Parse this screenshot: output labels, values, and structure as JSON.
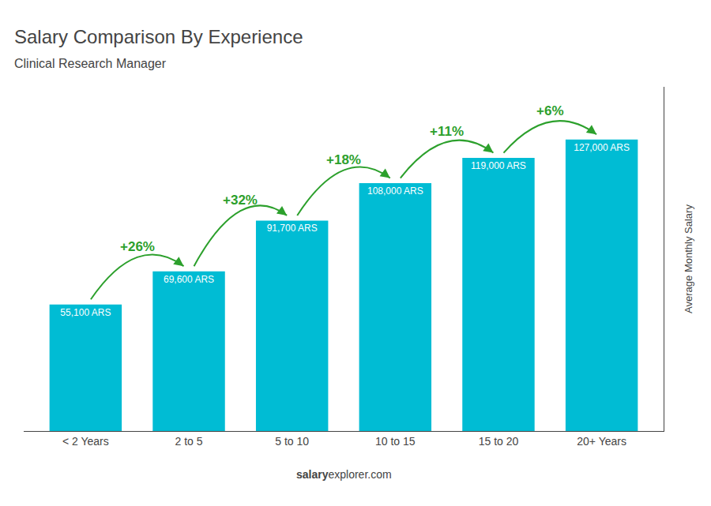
{
  "chart_data": {
    "type": "bar",
    "title": "Salary Comparison By Experience",
    "subtitle": "Clinical Research Manager",
    "ylabel": "Average Monthly Salary",
    "categories": [
      "< 2 Years",
      "2 to 5",
      "5 to 10",
      "10 to 15",
      "15 to 20",
      "20+ Years"
    ],
    "values": [
      55100,
      69600,
      91700,
      108000,
      119000,
      127000
    ],
    "value_labels": [
      "55,100 ARS",
      "69,600 ARS",
      "91,700 ARS",
      "108,000 ARS",
      "119,000 ARS",
      "127,000 ARS"
    ],
    "data_labels": true,
    "change_labels": [
      null,
      "+26%",
      "+32%",
      "+18%",
      "+11%",
      "+6%"
    ],
    "footer": [
      "salary",
      "explorer.com"
    ],
    "color": "#00bcd4",
    "ylim": [
      0,
      150000
    ],
    "grid": false,
    "tick_labels": "x"
  }
}
